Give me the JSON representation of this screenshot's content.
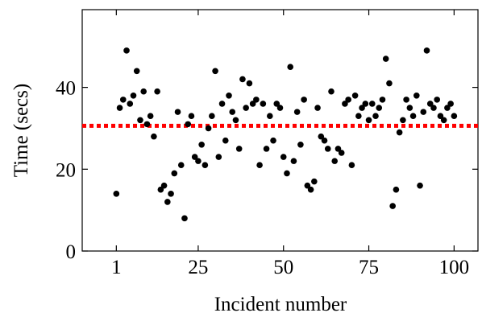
{
  "chart_data": {
    "type": "scatter",
    "title": "",
    "xlabel": "Incident number",
    "ylabel": "Time (secs)",
    "xlim": [
      -9,
      107
    ],
    "ylim": [
      0,
      59
    ],
    "xticks": [
      1,
      25,
      50,
      75,
      100
    ],
    "xtick_labels": [
      "1",
      "25",
      "50",
      "75",
      "100"
    ],
    "yticks": [
      0,
      20,
      40
    ],
    "ytick_labels": [
      "0",
      "20",
      "40"
    ],
    "grid": false,
    "legend": "none",
    "point_color": "#000000",
    "reference_line": {
      "y": 30.6,
      "color": "#ff0000",
      "style": "dotted"
    },
    "series": [
      {
        "points": [
          [
            1,
            14
          ],
          [
            2,
            35
          ],
          [
            3,
            37
          ],
          [
            4,
            49
          ],
          [
            5,
            36
          ],
          [
            6,
            38
          ],
          [
            7,
            44
          ],
          [
            8,
            32
          ],
          [
            9,
            39
          ],
          [
            10,
            31
          ],
          [
            11,
            33
          ],
          [
            12,
            28
          ],
          [
            13,
            39
          ],
          [
            14,
            15
          ],
          [
            15,
            16
          ],
          [
            16,
            12
          ],
          [
            17,
            14
          ],
          [
            18,
            19
          ],
          [
            19,
            34
          ],
          [
            20,
            21
          ],
          [
            21,
            8
          ],
          [
            22,
            31
          ],
          [
            23,
            33
          ],
          [
            24,
            23
          ],
          [
            25,
            22
          ],
          [
            26,
            26
          ],
          [
            27,
            21
          ],
          [
            28,
            30
          ],
          [
            29,
            33
          ],
          [
            30,
            44
          ],
          [
            31,
            23
          ],
          [
            32,
            36
          ],
          [
            33,
            27
          ],
          [
            34,
            38
          ],
          [
            35,
            34
          ],
          [
            36,
            32
          ],
          [
            37,
            25
          ],
          [
            38,
            42
          ],
          [
            39,
            35
          ],
          [
            40,
            41
          ],
          [
            41,
            36
          ],
          [
            42,
            37
          ],
          [
            43,
            21
          ],
          [
            44,
            36
          ],
          [
            45,
            25
          ],
          [
            46,
            33
          ],
          [
            47,
            27
          ],
          [
            48,
            36
          ],
          [
            49,
            35
          ],
          [
            50,
            23
          ],
          [
            51,
            19
          ],
          [
            52,
            45
          ],
          [
            53,
            22
          ],
          [
            54,
            34
          ],
          [
            55,
            26
          ],
          [
            56,
            37
          ],
          [
            57,
            16
          ],
          [
            58,
            15
          ],
          [
            59,
            17
          ],
          [
            60,
            35
          ],
          [
            61,
            28
          ],
          [
            62,
            27
          ],
          [
            63,
            25
          ],
          [
            64,
            39
          ],
          [
            65,
            22
          ],
          [
            66,
            25
          ],
          [
            67,
            24
          ],
          [
            68,
            36
          ],
          [
            69,
            37
          ],
          [
            70,
            21
          ],
          [
            71,
            38
          ],
          [
            72,
            33
          ],
          [
            73,
            35
          ],
          [
            74,
            36
          ],
          [
            75,
            32
          ],
          [
            76,
            36
          ],
          [
            77,
            33
          ],
          [
            78,
            35
          ],
          [
            79,
            37
          ],
          [
            80,
            47
          ],
          [
            81,
            41
          ],
          [
            82,
            11
          ],
          [
            83,
            15
          ],
          [
            84,
            29
          ],
          [
            85,
            32
          ],
          [
            86,
            37
          ],
          [
            87,
            35
          ],
          [
            88,
            33
          ],
          [
            89,
            38
          ],
          [
            90,
            16
          ],
          [
            91,
            34
          ],
          [
            92,
            49
          ],
          [
            93,
            36
          ],
          [
            94,
            35
          ],
          [
            95,
            37
          ],
          [
            96,
            33
          ],
          [
            97,
            32
          ],
          [
            98,
            35
          ],
          [
            99,
            36
          ],
          [
            100,
            33
          ]
        ]
      }
    ]
  }
}
